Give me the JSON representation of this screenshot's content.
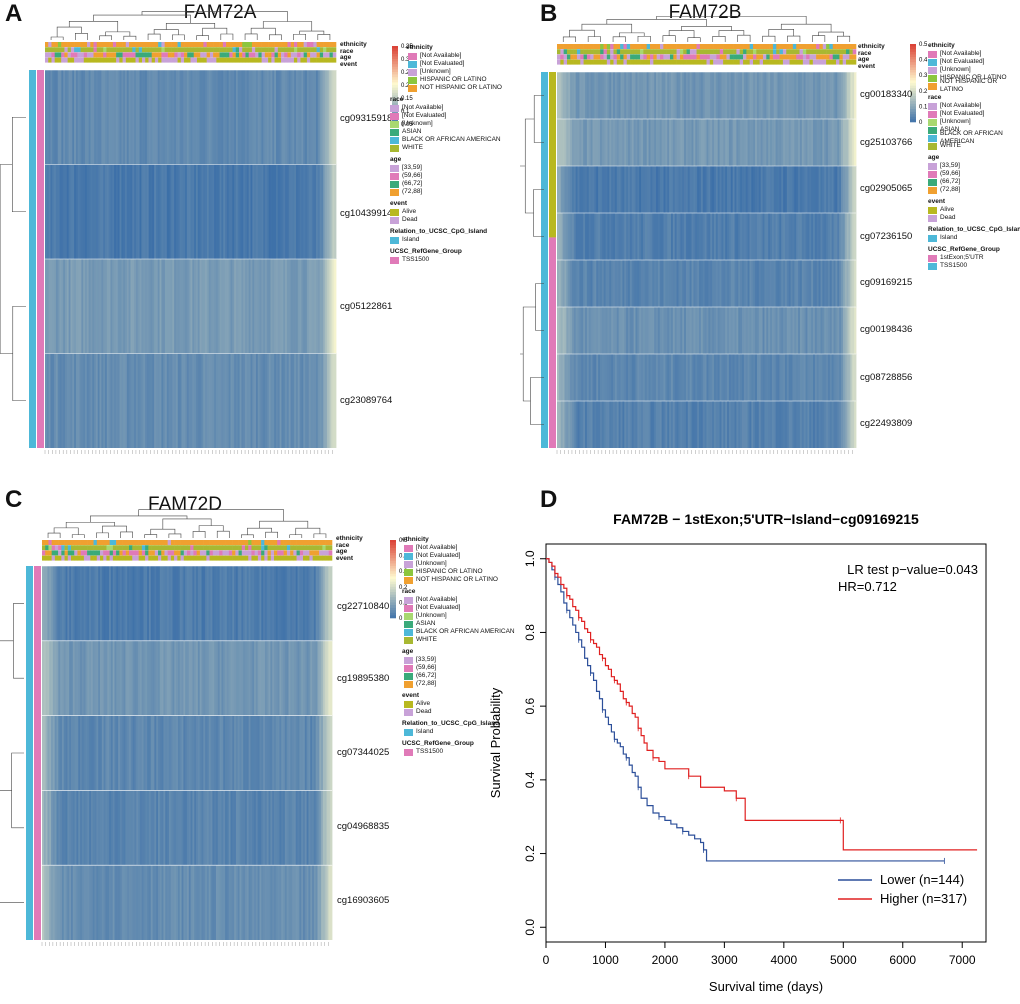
{
  "panels": {
    "A": {
      "letter": "A",
      "title": "FAM72A",
      "probes": [
        "cg09315918",
        "cg10439914",
        "cg05122861",
        "cg23089764"
      ],
      "probe_means": [
        0.1,
        0.04,
        0.16,
        0.11
      ],
      "colorbar_ticks": [
        "0.35",
        "0.3",
        "0.25",
        "0.2",
        "0.15",
        "0.1",
        "0.05"
      ],
      "refgene_entries": [
        "TSS1500"
      ]
    },
    "B": {
      "letter": "B",
      "title": "FAM72B",
      "probes": [
        "cg00183340",
        "cg25103766",
        "cg02905065",
        "cg07236150",
        "cg09169215",
        "cg00198436",
        "cg08728856",
        "cg22493809"
      ],
      "probe_means": [
        0.14,
        0.15,
        0.04,
        0.06,
        0.08,
        0.12,
        0.09,
        0.07
      ],
      "colorbar_ticks": [
        "0.5",
        "0.4",
        "0.3",
        "0.2",
        "0.1",
        "0"
      ],
      "refgene_entries": [
        "1stExon;5'UTR",
        "TSS1500"
      ]
    },
    "C": {
      "letter": "C",
      "title": "FAM72D",
      "probes": [
        "cg22710840",
        "cg19895380",
        "cg07344025",
        "cg04968835",
        "cg16903605"
      ],
      "probe_means": [
        0.05,
        0.14,
        0.09,
        0.08,
        0.11
      ],
      "colorbar_ticks": [
        "0.5",
        "0.4",
        "0.3",
        "0.2",
        "0.1",
        "0"
      ],
      "refgene_entries": [
        "TSS1500"
      ]
    }
  },
  "annotation_tracks": [
    "ethnicity",
    "race",
    "age",
    "event"
  ],
  "legend": {
    "ethnicity_title": "ethnicity",
    "ethnicity": [
      "[Not Available]",
      "[Not Evaluated]",
      "[Unknown]",
      "HISPANIC OR LATINO",
      "NOT HISPANIC OR LATINO"
    ],
    "race_title": "race",
    "race": [
      "[Not Available]",
      "[Not Evaluated]",
      "[Unknown]",
      "ASIAN",
      "BLACK OR AFRICAN AMERICAN",
      "WHITE"
    ],
    "age_title": "age",
    "age": [
      "[33,59]",
      "(59,66]",
      "(66,72]",
      "(72,88]"
    ],
    "event_title": "event",
    "event": [
      "Alive",
      "Dead"
    ],
    "relation_title": "Relation_to_UCSC_CpG_Island",
    "relation": [
      "Island"
    ],
    "refgene_title": "UCSC_RefGene_Group"
  },
  "colors": {
    "ethnicity": [
      "#e07ab8",
      "#4db8d8",
      "#c8a2d8",
      "#8cc63e",
      "#f0a030"
    ],
    "race": [
      "#c8a2d8",
      "#e07ab8",
      "#a8d870",
      "#3aaa7a",
      "#4db8d8",
      "#a8b832"
    ],
    "age": [
      "#c8a2d8",
      "#e07ab8",
      "#3aaa7a",
      "#f0a030"
    ],
    "event": [
      "#b8b820",
      "#c8a2d8"
    ],
    "relation": [
      "#4db8d8"
    ],
    "refgene_A": [
      "#e07ab8"
    ],
    "refgene_B": [
      "#e07ab8",
      "#4db8d8"
    ],
    "refgene_C": [
      "#e07ab8"
    ],
    "heat_low": "#3a6ea8",
    "heat_mid": "#fffbd0",
    "heat_high": "#d73027",
    "lower_line": "#2c4f9a",
    "higher_line": "#e02020"
  },
  "chart_data": {
    "type": "line",
    "title": "FAM72B − 1stExon;5'UTR−Island−cg09169215",
    "xlabel": "Survival time (days)",
    "ylabel": "Survival Probability",
    "xlim": [
      0,
      7400
    ],
    "ylim": [
      -0.04,
      1.04
    ],
    "xticks": [
      "0",
      "1000",
      "2000",
      "3000",
      "4000",
      "5000",
      "6000",
      "7000"
    ],
    "yticks": [
      "0.0",
      "0.2",
      "0.4",
      "0.6",
      "0.8",
      "1.0"
    ],
    "annotation_pvalue": "LR test p−value=0.043",
    "annotation_hr": "HR=0.712",
    "series": [
      {
        "name": "Lower (n=144)",
        "x": [
          0,
          50,
          100,
          150,
          200,
          250,
          300,
          350,
          400,
          450,
          500,
          550,
          600,
          650,
          700,
          750,
          800,
          850,
          900,
          950,
          1000,
          1050,
          1100,
          1150,
          1200,
          1250,
          1300,
          1350,
          1400,
          1450,
          1500,
          1550,
          1600,
          1700,
          1800,
          1900,
          2000,
          2100,
          2200,
          2300,
          2400,
          2500,
          2600,
          2650,
          2700,
          3500,
          5000,
          6700
        ],
        "y": [
          1.0,
          0.99,
          0.97,
          0.95,
          0.93,
          0.91,
          0.88,
          0.86,
          0.84,
          0.82,
          0.8,
          0.78,
          0.76,
          0.73,
          0.71,
          0.69,
          0.67,
          0.64,
          0.62,
          0.59,
          0.57,
          0.55,
          0.53,
          0.51,
          0.5,
          0.49,
          0.47,
          0.46,
          0.44,
          0.42,
          0.41,
          0.38,
          0.35,
          0.33,
          0.31,
          0.3,
          0.29,
          0.28,
          0.27,
          0.26,
          0.25,
          0.24,
          0.23,
          0.21,
          0.18,
          0.18,
          0.18,
          0.18
        ]
      },
      {
        "name": "Higher (n=317)",
        "x": [
          0,
          50,
          100,
          150,
          200,
          250,
          300,
          350,
          400,
          450,
          500,
          550,
          600,
          650,
          700,
          750,
          800,
          850,
          900,
          950,
          1000,
          1050,
          1100,
          1150,
          1200,
          1250,
          1300,
          1350,
          1400,
          1450,
          1500,
          1550,
          1600,
          1650,
          1700,
          1800,
          1900,
          2000,
          2200,
          2400,
          2600,
          2700,
          3000,
          3200,
          3350,
          4000,
          4500,
          4950,
          5000,
          6500,
          7250
        ],
        "y": [
          1.0,
          0.99,
          0.98,
          0.96,
          0.95,
          0.93,
          0.92,
          0.9,
          0.89,
          0.87,
          0.86,
          0.84,
          0.83,
          0.81,
          0.8,
          0.78,
          0.77,
          0.76,
          0.74,
          0.73,
          0.71,
          0.7,
          0.68,
          0.67,
          0.66,
          0.64,
          0.62,
          0.61,
          0.6,
          0.58,
          0.57,
          0.54,
          0.52,
          0.5,
          0.48,
          0.46,
          0.45,
          0.43,
          0.43,
          0.41,
          0.38,
          0.38,
          0.37,
          0.35,
          0.29,
          0.29,
          0.29,
          0.29,
          0.21,
          0.21,
          0.21
        ]
      }
    ],
    "legend_position": "bottom-right"
  }
}
